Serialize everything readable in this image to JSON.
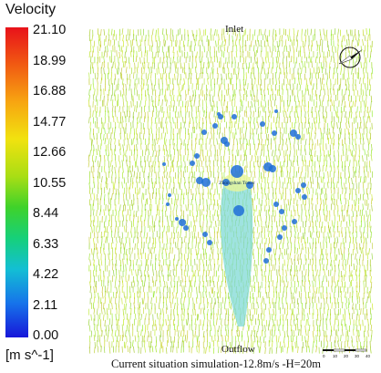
{
  "legend": {
    "title": "Velocity",
    "unit": "[m s^-1]",
    "ticks": [
      "21.10",
      "18.99",
      "16.88",
      "14.77",
      "12.66",
      "10.55",
      "8.44",
      "6.33",
      "4.22",
      "2.11",
      "0.00"
    ]
  },
  "diagram": {
    "inlet_label": "Inlet",
    "outflow_label": "Outflow",
    "caption": "Current situation simulation-12.8m/s -H=20m",
    "center_label": "Zhongshan Tower",
    "scale_labels": [
      "0",
      "10",
      "20",
      "30",
      "40"
    ]
  },
  "colors": {
    "field": "#b7e83c",
    "wake": "#7fd9d6",
    "obstacle": "#1f6fd8"
  }
}
